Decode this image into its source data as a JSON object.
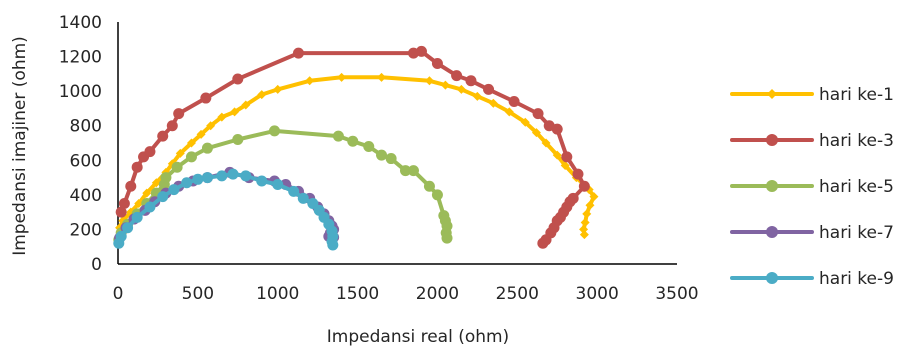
{
  "chart_data": {
    "type": "scatter",
    "title": "",
    "xlabel": "Impedansi real (ohm)",
    "ylabel": "Impedansi imajiner (ohm)",
    "xlim": [
      0,
      3500
    ],
    "ylim": [
      0,
      1400
    ],
    "x_ticks": [
      "0",
      "500",
      "1000",
      "1500",
      "2000",
      "2500",
      "3000",
      "3500"
    ],
    "y_ticks": [
      "0",
      "200",
      "400",
      "600",
      "800",
      "1000",
      "1200",
      "1400"
    ],
    "grid": false,
    "legend_position": "right",
    "series": [
      {
        "name": "hari ke-1",
        "color": "#FFC000",
        "marker": "diamond",
        "points": [
          [
            10,
            210
          ],
          [
            30,
            250
          ],
          [
            80,
            300
          ],
          [
            130,
            350
          ],
          [
            180,
            410
          ],
          [
            240,
            470
          ],
          [
            300,
            530
          ],
          [
            340,
            580
          ],
          [
            390,
            640
          ],
          [
            460,
            700
          ],
          [
            520,
            750
          ],
          [
            580,
            800
          ],
          [
            650,
            850
          ],
          [
            730,
            880
          ],
          [
            800,
            920
          ],
          [
            900,
            980
          ],
          [
            1000,
            1010
          ],
          [
            1200,
            1060
          ],
          [
            1400,
            1080
          ],
          [
            1650,
            1080
          ],
          [
            1950,
            1060
          ],
          [
            2050,
            1035
          ],
          [
            2150,
            1010
          ],
          [
            2250,
            970
          ],
          [
            2350,
            930
          ],
          [
            2450,
            880
          ],
          [
            2550,
            820
          ],
          [
            2620,
            760
          ],
          [
            2680,
            700
          ],
          [
            2750,
            630
          ],
          [
            2800,
            570
          ],
          [
            2870,
            500
          ],
          [
            2950,
            430
          ],
          [
            2980,
            390
          ],
          [
            2955,
            340
          ],
          [
            2935,
            290
          ],
          [
            2925,
            240
          ],
          [
            2915,
            200
          ],
          [
            2920,
            170
          ]
        ]
      },
      {
        "name": "hari ke-3",
        "color": "#C0504D",
        "marker": "circle",
        "points": [
          [
            20,
            300
          ],
          [
            40,
            350
          ],
          [
            80,
            450
          ],
          [
            120,
            560
          ],
          [
            160,
            620
          ],
          [
            200,
            650
          ],
          [
            280,
            740
          ],
          [
            340,
            800
          ],
          [
            380,
            870
          ],
          [
            550,
            960
          ],
          [
            750,
            1070
          ],
          [
            1130,
            1220
          ],
          [
            1850,
            1220
          ],
          [
            1900,
            1230
          ],
          [
            2000,
            1160
          ],
          [
            2120,
            1090
          ],
          [
            2210,
            1060
          ],
          [
            2320,
            1010
          ],
          [
            2480,
            940
          ],
          [
            2630,
            870
          ],
          [
            2700,
            800
          ],
          [
            2750,
            780
          ],
          [
            2810,
            620
          ],
          [
            2880,
            520
          ],
          [
            2920,
            450
          ],
          [
            2850,
            380
          ],
          [
            2830,
            360
          ],
          [
            2810,
            330
          ],
          [
            2790,
            300
          ],
          [
            2770,
            270
          ],
          [
            2750,
            250
          ],
          [
            2730,
            210
          ],
          [
            2710,
            180
          ],
          [
            2680,
            140
          ],
          [
            2660,
            120
          ]
        ]
      },
      {
        "name": "hari ke-5",
        "color": "#9BBB59",
        "marker": "circle",
        "points": [
          [
            5,
            140
          ],
          [
            20,
            180
          ],
          [
            60,
            230
          ],
          [
            120,
            290
          ],
          [
            180,
            350
          ],
          [
            240,
            410
          ],
          [
            290,
            460
          ],
          [
            300,
            500
          ],
          [
            370,
            560
          ],
          [
            460,
            620
          ],
          [
            560,
            670
          ],
          [
            750,
            720
          ],
          [
            980,
            770
          ],
          [
            1380,
            740
          ],
          [
            1470,
            710
          ],
          [
            1570,
            680
          ],
          [
            1650,
            630
          ],
          [
            1710,
            610
          ],
          [
            1800,
            540
          ],
          [
            1850,
            540
          ],
          [
            1950,
            450
          ],
          [
            2000,
            400
          ],
          [
            2040,
            280
          ],
          [
            2050,
            250
          ],
          [
            2060,
            220
          ],
          [
            2055,
            180
          ],
          [
            2060,
            150
          ]
        ]
      },
      {
        "name": "hari ke-7",
        "color": "#8064A2",
        "marker": "circle",
        "points": [
          [
            10,
            150
          ],
          [
            50,
            210
          ],
          [
            100,
            260
          ],
          [
            170,
            310
          ],
          [
            230,
            360
          ],
          [
            300,
            410
          ],
          [
            380,
            450
          ],
          [
            470,
            480
          ],
          [
            560,
            500
          ],
          [
            700,
            530
          ],
          [
            820,
            500
          ],
          [
            980,
            480
          ],
          [
            1050,
            460
          ],
          [
            1130,
            420
          ],
          [
            1200,
            380
          ],
          [
            1250,
            330
          ],
          [
            1290,
            290
          ],
          [
            1320,
            250
          ],
          [
            1340,
            220
          ],
          [
            1350,
            200
          ],
          [
            1330,
            180
          ],
          [
            1320,
            160
          ],
          [
            1350,
            155
          ]
        ]
      },
      {
        "name": "hari ke-9",
        "color": "#4BACC6",
        "marker": "circle",
        "points": [
          [
            5,
            120
          ],
          [
            20,
            160
          ],
          [
            60,
            210
          ],
          [
            120,
            270
          ],
          [
            200,
            330
          ],
          [
            280,
            390
          ],
          [
            350,
            430
          ],
          [
            430,
            470
          ],
          [
            500,
            490
          ],
          [
            560,
            500
          ],
          [
            650,
            510
          ],
          [
            720,
            520
          ],
          [
            800,
            510
          ],
          [
            900,
            480
          ],
          [
            1000,
            460
          ],
          [
            1100,
            420
          ],
          [
            1160,
            380
          ],
          [
            1220,
            350
          ],
          [
            1260,
            310
          ],
          [
            1290,
            270
          ],
          [
            1320,
            230
          ],
          [
            1340,
            190
          ],
          [
            1345,
            160
          ],
          [
            1340,
            130
          ],
          [
            1345,
            110
          ]
        ]
      }
    ]
  }
}
